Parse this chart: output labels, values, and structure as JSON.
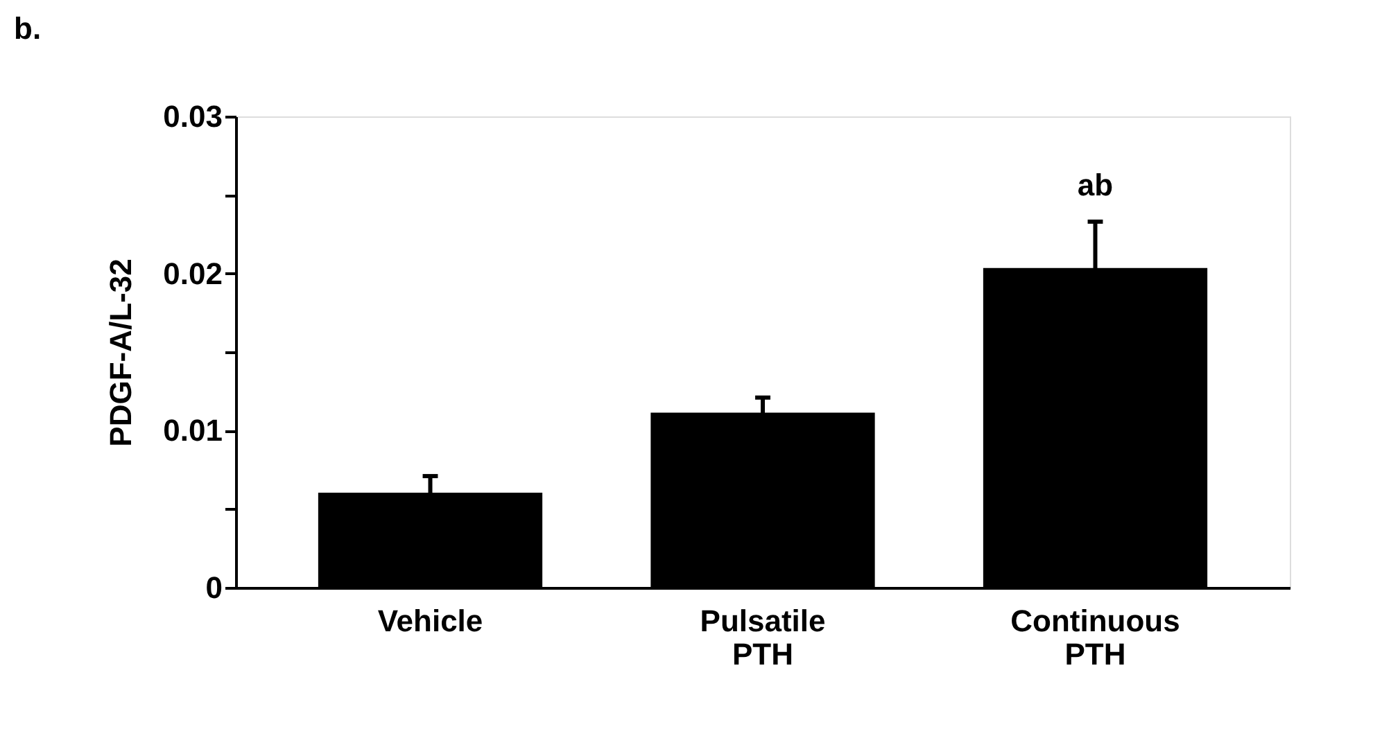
{
  "chart_data": {
    "type": "bar",
    "ylabel": "PDGF-A/L-32",
    "categories": [
      "Vehicle",
      "Pulsatile\nPTH",
      "Continuous\nPTH"
    ],
    "values": [
      0.006,
      0.0111,
      0.0203
    ],
    "color": "#000000",
    "errors": [
      [
        0.006,
        0.0071
      ],
      [
        0.0111,
        0.0121
      ],
      [
        0.0203,
        0.0233
      ]
    ],
    "ylim": [
      0,
      0.03
    ],
    "yticks": [
      0,
      {
        "value": 0.005,
        "label": null
      },
      0.01,
      {
        "value": 0.015,
        "label": null
      },
      0.02,
      {
        "value": 0.025,
        "label": null
      },
      0.03
    ],
    "grid": false,
    "annotations": [
      "b.",
      "ab"
    ]
  }
}
